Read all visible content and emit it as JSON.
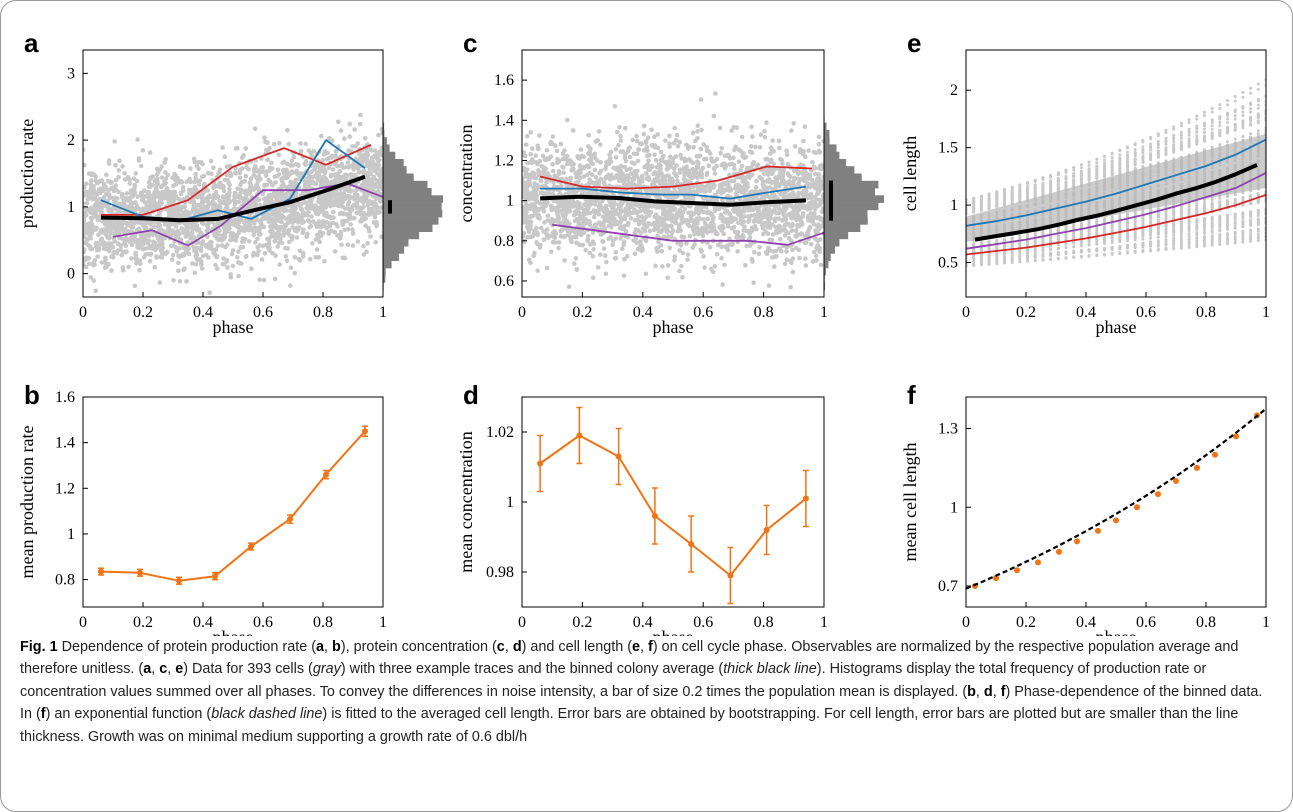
{
  "chart_data": [
    {
      "id": "a",
      "type": "scatter",
      "letter": "a",
      "xlabel": "phase",
      "ylabel": "production rate",
      "xlim": [
        0,
        1
      ],
      "ylim": [
        -0.35,
        3.35
      ],
      "xticks": [
        "0",
        "0.2",
        "0.4",
        "0.6",
        "0.8",
        "1"
      ],
      "xtick_values": [
        0,
        0.2,
        0.4,
        0.6,
        0.8,
        1
      ],
      "yticks": [
        "0",
        "1",
        "2",
        "3"
      ],
      "ytick_values": [
        0,
        1,
        2,
        3
      ],
      "scatter": {
        "color": "#c8c8c8",
        "n": 2600,
        "y_mean": [
          [
            0,
            0.82
          ],
          [
            0.35,
            0.8
          ],
          [
            0.6,
            1.0
          ],
          [
            1,
            1.35
          ]
        ],
        "y_sd": 0.38
      },
      "histogram": {
        "side": "right",
        "bar_value": 0.2,
        "color": "#808080"
      },
      "series": [
        {
          "color": "#d62728",
          "x": [
            0.06,
            0.2,
            0.35,
            0.5,
            0.67,
            0.81,
            0.96
          ],
          "y": [
            0.88,
            0.88,
            1.1,
            1.6,
            1.88,
            1.63,
            1.93
          ]
        },
        {
          "color": "#1f77b4",
          "x": [
            0.06,
            0.2,
            0.33,
            0.45,
            0.56,
            0.69,
            0.81,
            0.94
          ],
          "y": [
            1.1,
            0.85,
            0.8,
            0.95,
            0.82,
            1.12,
            2.0,
            1.58
          ]
        },
        {
          "color": "#8e44ad",
          "x": [
            0.1,
            0.23,
            0.35,
            0.46,
            0.6,
            0.75,
            0.88,
            1.0
          ],
          "y": [
            0.55,
            0.65,
            0.42,
            0.72,
            1.25,
            1.25,
            1.35,
            1.15
          ]
        },
        {
          "color": "#000000",
          "width": 4,
          "x": [
            0.06,
            0.2,
            0.32,
            0.45,
            0.57,
            0.69,
            0.82,
            0.94
          ],
          "y": [
            0.84,
            0.83,
            0.8,
            0.82,
            0.95,
            1.07,
            1.26,
            1.45
          ]
        }
      ]
    },
    {
      "id": "b",
      "type": "line",
      "letter": "b",
      "xlabel": "phase",
      "ylabel": "mean production rate",
      "xlim": [
        0,
        1
      ],
      "ylim": [
        0.68,
        1.6
      ],
      "xticks": [
        "0",
        "0.2",
        "0.4",
        "0.6",
        "0.8",
        "1"
      ],
      "xtick_values": [
        0,
        0.2,
        0.4,
        0.6,
        0.8,
        1
      ],
      "yticks": [
        "0.8",
        "1",
        "1.2",
        "1.4",
        "1.6"
      ],
      "ytick_values": [
        0.8,
        1,
        1.2,
        1.4,
        1.6
      ],
      "series": [
        {
          "color": "#f07316",
          "x": [
            0.06,
            0.19,
            0.32,
            0.44,
            0.56,
            0.69,
            0.81,
            0.94
          ],
          "y": [
            0.835,
            0.83,
            0.795,
            0.815,
            0.945,
            1.065,
            1.26,
            1.45
          ],
          "err": [
            0.015,
            0.015,
            0.015,
            0.015,
            0.015,
            0.018,
            0.018,
            0.022
          ]
        }
      ]
    },
    {
      "id": "c",
      "type": "scatter",
      "letter": "c",
      "xlabel": "phase",
      "ylabel": "concentration",
      "xlim": [
        0,
        1
      ],
      "ylim": [
        0.52,
        1.75
      ],
      "xticks": [
        "0",
        "0.2",
        "0.4",
        "0.6",
        "0.8",
        "1"
      ],
      "xtick_values": [
        0,
        0.2,
        0.4,
        0.6,
        0.8,
        1
      ],
      "yticks": [
        "0.6",
        "0.8",
        "1",
        "1.2",
        "1.4",
        "1.6"
      ],
      "ytick_values": [
        0.6,
        0.8,
        1,
        1.2,
        1.4,
        1.6
      ],
      "scatter": {
        "color": "#c8c8c8",
        "n": 2600,
        "y_mean": [
          [
            0,
            1.01
          ],
          [
            1,
            1.0
          ]
        ],
        "y_sd": 0.14
      },
      "histogram": {
        "side": "right",
        "bar_value": 0.2,
        "color": "#808080"
      },
      "series": [
        {
          "color": "#d62728",
          "x": [
            0.06,
            0.2,
            0.35,
            0.5,
            0.65,
            0.81,
            0.96
          ],
          "y": [
            1.12,
            1.07,
            1.06,
            1.07,
            1.1,
            1.17,
            1.16
          ]
        },
        {
          "color": "#1f77b4",
          "x": [
            0.06,
            0.2,
            0.33,
            0.46,
            0.56,
            0.69,
            0.81,
            0.94
          ],
          "y": [
            1.06,
            1.06,
            1.04,
            1.03,
            1.03,
            1.01,
            1.04,
            1.07
          ]
        },
        {
          "color": "#8e44ad",
          "x": [
            0.1,
            0.3,
            0.5,
            0.6,
            0.75,
            0.88,
            1.0
          ],
          "y": [
            0.88,
            0.84,
            0.8,
            0.8,
            0.8,
            0.78,
            0.84
          ]
        },
        {
          "color": "#000000",
          "width": 4,
          "x": [
            0.06,
            0.19,
            0.32,
            0.44,
            0.56,
            0.69,
            0.81,
            0.94
          ],
          "y": [
            1.011,
            1.019,
            1.013,
            0.996,
            0.988,
            0.979,
            0.992,
            1.001
          ]
        }
      ]
    },
    {
      "id": "d",
      "type": "line",
      "letter": "d",
      "xlabel": "phase",
      "ylabel": "mean concentration",
      "xlim": [
        0,
        1
      ],
      "ylim": [
        0.97,
        1.03
      ],
      "xticks": [
        "0",
        "0.2",
        "0.4",
        "0.6",
        "0.8",
        "1"
      ],
      "xtick_values": [
        0,
        0.2,
        0.4,
        0.6,
        0.8,
        1
      ],
      "yticks": [
        "0.98",
        "1",
        "1.02"
      ],
      "ytick_values": [
        0.98,
        1,
        1.02
      ],
      "series": [
        {
          "color": "#f07316",
          "x": [
            0.06,
            0.19,
            0.32,
            0.44,
            0.56,
            0.69,
            0.81,
            0.94
          ],
          "y": [
            1.011,
            1.019,
            1.013,
            0.996,
            0.988,
            0.979,
            0.992,
            1.001
          ],
          "err": [
            0.008,
            0.008,
            0.008,
            0.008,
            0.008,
            0.008,
            0.007,
            0.008
          ]
        }
      ]
    },
    {
      "id": "e",
      "type": "scatter",
      "letter": "e",
      "xlabel": "phase",
      "ylabel": "cell length",
      "xlim": [
        0,
        1
      ],
      "ylim": [
        0.2,
        2.35
      ],
      "xticks": [
        "0",
        "0.2",
        "0.4",
        "0.6",
        "0.8",
        "1"
      ],
      "xtick_values": [
        0,
        0.2,
        0.4,
        0.6,
        0.8,
        1
      ],
      "yticks": [
        "0.5",
        "1",
        "1.5",
        "2"
      ],
      "ytick_values": [
        0.5,
        1,
        1.5,
        2
      ],
      "scatter": {
        "color": "#c8c8c8",
        "traces": 90,
        "start": [
          0.45,
          1.05
        ],
        "growth": [
          1.4,
          2.1
        ]
      },
      "series": [
        {
          "color": "#1f77b4",
          "x": [
            0,
            0.1,
            0.2,
            0.3,
            0.4,
            0.5,
            0.6,
            0.7,
            0.8,
            0.9,
            1.0
          ],
          "y": [
            0.82,
            0.86,
            0.91,
            0.97,
            1.03,
            1.1,
            1.18,
            1.26,
            1.34,
            1.44,
            1.57
          ]
        },
        {
          "color": "#8e44ad",
          "x": [
            0,
            0.1,
            0.2,
            0.3,
            0.4,
            0.5,
            0.6,
            0.7,
            0.8,
            0.9,
            1.0
          ],
          "y": [
            0.62,
            0.66,
            0.7,
            0.75,
            0.8,
            0.86,
            0.92,
            0.99,
            1.07,
            1.15,
            1.28
          ]
        },
        {
          "color": "#d62728",
          "x": [
            0,
            0.1,
            0.2,
            0.3,
            0.4,
            0.5,
            0.6,
            0.7,
            0.8,
            0.9,
            1.0
          ],
          "y": [
            0.57,
            0.6,
            0.63,
            0.67,
            0.71,
            0.76,
            0.81,
            0.87,
            0.93,
            1.0,
            1.09
          ]
        },
        {
          "color": "#000000",
          "width": 4,
          "x": [
            0.03,
            0.1,
            0.17,
            0.24,
            0.31,
            0.37,
            0.44,
            0.5,
            0.57,
            0.64,
            0.7,
            0.77,
            0.83,
            0.9,
            0.97
          ],
          "y": [
            0.7,
            0.73,
            0.76,
            0.79,
            0.83,
            0.87,
            0.91,
            0.95,
            1.0,
            1.05,
            1.1,
            1.15,
            1.2,
            1.27,
            1.35
          ]
        }
      ]
    },
    {
      "id": "f",
      "type": "line",
      "letter": "f",
      "xlabel": "phase",
      "ylabel": "mean cell length",
      "xlim": [
        0,
        1
      ],
      "ylim": [
        0.62,
        1.42
      ],
      "xticks": [
        "0",
        "0.2",
        "0.4",
        "0.6",
        "0.8",
        "1"
      ],
      "xtick_values": [
        0,
        0.2,
        0.4,
        0.6,
        0.8,
        1
      ],
      "yticks": [
        "0.7",
        "1",
        "1.3"
      ],
      "ytick_values": [
        0.7,
        1,
        1.3
      ],
      "series": [
        {
          "color": "#f07316",
          "markers_only": true,
          "x": [
            0.03,
            0.1,
            0.17,
            0.24,
            0.31,
            0.37,
            0.44,
            0.5,
            0.57,
            0.64,
            0.7,
            0.77,
            0.83,
            0.9,
            0.97
          ],
          "y": [
            0.7,
            0.73,
            0.76,
            0.79,
            0.83,
            0.87,
            0.91,
            0.95,
            1.0,
            1.05,
            1.1,
            1.15,
            1.2,
            1.27,
            1.35
          ]
        },
        {
          "color": "#000000",
          "dashed": true,
          "fit": "exponential",
          "a": 0.69,
          "b": 0.69
        }
      ]
    }
  ],
  "caption": {
    "label": "Fig. 1",
    "segments": [
      {
        "t": " Dependence of protein production rate (",
        "s": ""
      },
      {
        "t": "a",
        "s": "b"
      },
      {
        "t": ", ",
        "s": ""
      },
      {
        "t": "b",
        "s": "b"
      },
      {
        "t": "), protein concentration (",
        "s": ""
      },
      {
        "t": "c",
        "s": "b"
      },
      {
        "t": ", ",
        "s": ""
      },
      {
        "t": "d",
        "s": "b"
      },
      {
        "t": ") and cell length (",
        "s": ""
      },
      {
        "t": "e",
        "s": "b"
      },
      {
        "t": ", ",
        "s": ""
      },
      {
        "t": "f",
        "s": "b"
      },
      {
        "t": ") on cell cycle phase. Observables are normalized by the respective population average and therefore unitless. (",
        "s": ""
      },
      {
        "t": "a",
        "s": "b"
      },
      {
        "t": ", ",
        "s": ""
      },
      {
        "t": "c",
        "s": "b"
      },
      {
        "t": ", ",
        "s": ""
      },
      {
        "t": "e",
        "s": "b"
      },
      {
        "t": ") Data for 393 cells (",
        "s": ""
      },
      {
        "t": "gray",
        "s": "i"
      },
      {
        "t": ") with three example traces and the binned colony average (",
        "s": ""
      },
      {
        "t": "thick black line",
        "s": "i"
      },
      {
        "t": "). Histograms display the total frequency of production rate or concentration values summed over all phases. To convey the differences in noise intensity, a bar of size 0.2 times the population mean is displayed. (",
        "s": ""
      },
      {
        "t": "b",
        "s": "b"
      },
      {
        "t": ", ",
        "s": ""
      },
      {
        "t": "d",
        "s": "b"
      },
      {
        "t": ", ",
        "s": ""
      },
      {
        "t": "f",
        "s": "b"
      },
      {
        "t": ") Phase-dependence of the binned data. In (",
        "s": ""
      },
      {
        "t": "f",
        "s": "b"
      },
      {
        "t": ") an exponential function (",
        "s": ""
      },
      {
        "t": "black dashed line",
        "s": "i"
      },
      {
        "t": ") is fitted to the averaged cell length. Error bars are obtained by bootstrapping. For cell length, error bars are plotted but are smaller than the line thickness. Growth was on minimal medium supporting a growth rate of 0.6 dbl/h",
        "s": ""
      }
    ]
  }
}
